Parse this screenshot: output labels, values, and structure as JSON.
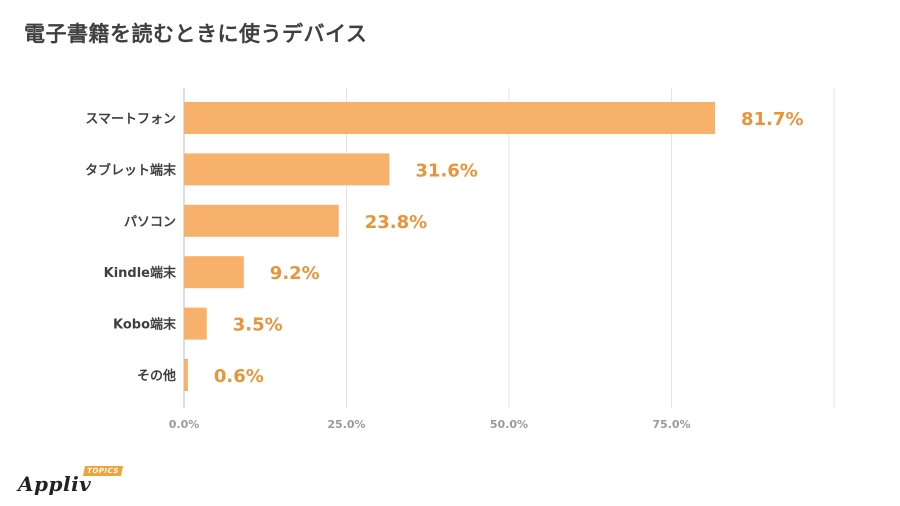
{
  "title": "電子書籍を読むときに使うデバイス",
  "logo": {
    "name": "Appliv",
    "badge": "TOPICS"
  },
  "colors": {
    "bar": "#f7b16b",
    "value_label": "#e8943a",
    "grid": "#e3e3e3",
    "text": "#3f3f3f",
    "tick": "#9a9a9a"
  },
  "chart_data": {
    "type": "bar",
    "orientation": "horizontal",
    "title": "電子書籍を読むときに使うデバイス",
    "categories": [
      "スマートフォン",
      "タブレット端末",
      "パソコン",
      "Kindle端末",
      "Kobo端末",
      "その他"
    ],
    "values": [
      81.7,
      31.6,
      23.8,
      9.2,
      3.5,
      0.6
    ],
    "value_labels": [
      "81.7%",
      "31.6%",
      "23.8%",
      "9.2%",
      "3.5%",
      "0.6%"
    ],
    "xticks": [
      0,
      25,
      50,
      75
    ],
    "xtick_labels": [
      "0.0%",
      "25.0%",
      "50.0%",
      "75.0%"
    ],
    "xlim": [
      0,
      100
    ],
    "xlabel": "",
    "ylabel": "",
    "grid": true,
    "legend": "none"
  }
}
